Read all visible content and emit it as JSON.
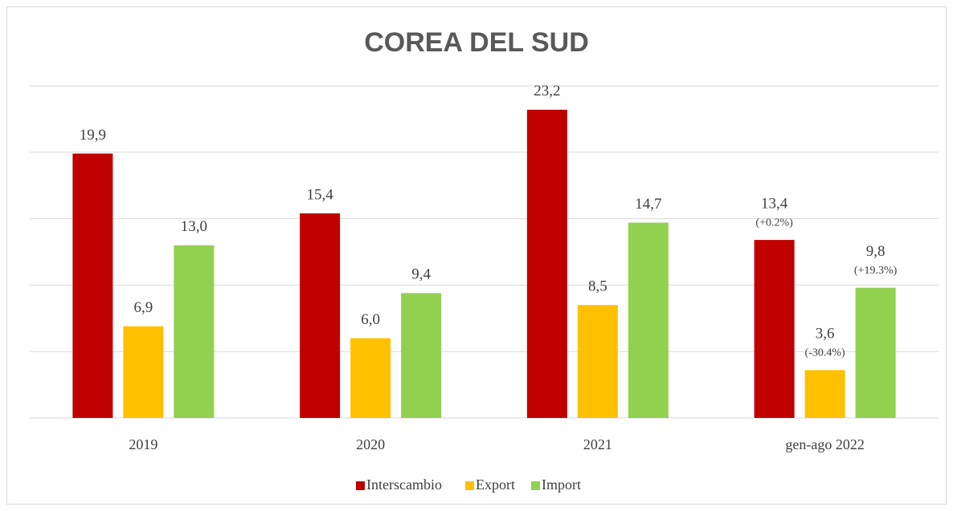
{
  "chart_data": {
    "type": "bar",
    "title": "COREA DEL SUD",
    "categories": [
      "2019",
      "2020",
      "2021",
      "gen-ago 2022"
    ],
    "series": [
      {
        "name": "Interscambio",
        "color": "#c00000",
        "values": [
          19.9,
          15.4,
          23.2,
          13.4
        ],
        "value_labels": [
          "19,9",
          "15,4",
          "23,2",
          "13,4"
        ],
        "change_labels": [
          null,
          null,
          null,
          "(+0.2%)"
        ]
      },
      {
        "name": "Export",
        "color": "#ffc000",
        "values": [
          6.9,
          6.0,
          8.5,
          3.6
        ],
        "value_labels": [
          "6,9",
          "6,0",
          "8,5",
          "3,6"
        ],
        "change_labels": [
          null,
          null,
          null,
          "(-30.4%)"
        ]
      },
      {
        "name": "Import",
        "color": "#92d050",
        "values": [
          13.0,
          9.4,
          14.7,
          9.8
        ],
        "value_labels": [
          "13,0",
          "9,4",
          "14,7",
          "9,8"
        ],
        "change_labels": [
          null,
          null,
          null,
          "(+19.3%)"
        ]
      }
    ],
    "ylim": [
      0,
      25
    ],
    "yticks": [
      0,
      5,
      10,
      15,
      20,
      25
    ],
    "grid": true,
    "legend": "bottom"
  }
}
